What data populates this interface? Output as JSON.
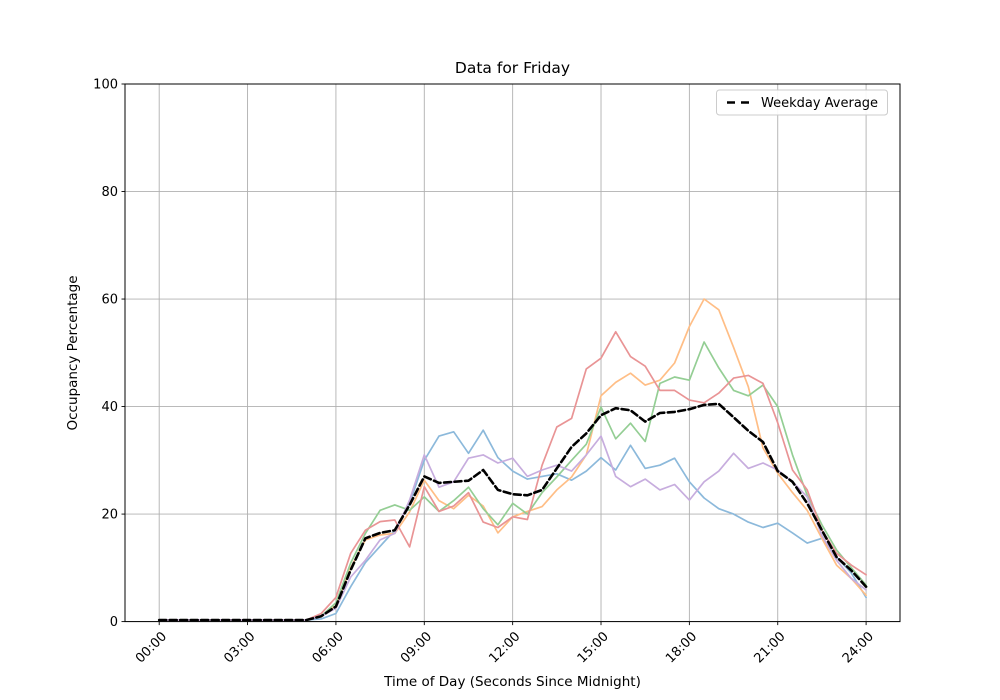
{
  "chart_data": {
    "type": "line",
    "title": "Data for Friday",
    "xlabel": "Time of Day (Seconds Since Midnight)",
    "ylabel": "Occupancy Percentage",
    "ylim": [
      0,
      100
    ],
    "yticks": [
      0,
      20,
      40,
      60,
      80,
      100
    ],
    "xtick_hours": [
      0,
      3,
      6,
      9,
      12,
      15,
      18,
      21,
      24
    ],
    "xtick_labels": [
      "00:00",
      "03:00",
      "06:00",
      "09:00",
      "12:00",
      "15:00",
      "18:00",
      "21:00",
      "24:00"
    ],
    "grid": true,
    "grid_color": "#b0b0b0",
    "legend": {
      "position": "upper right",
      "entries": [
        {
          "label": "Weekday Average",
          "color": "#000000",
          "style": "dashed"
        }
      ]
    },
    "x_hours": [
      0,
      0.5,
      1,
      1.5,
      2,
      2.5,
      3,
      3.5,
      4,
      4.5,
      5,
      5.5,
      6,
      6.5,
      7,
      7.5,
      8,
      8.5,
      9,
      9.5,
      10,
      10.5,
      11,
      11.5,
      12,
      12.5,
      13,
      13.5,
      14,
      14.5,
      15,
      15.5,
      16,
      16.5,
      17,
      17.5,
      18,
      18.5,
      19,
      19.5,
      20,
      20.5,
      21,
      21.5,
      22,
      22.5,
      23,
      23.5,
      24
    ],
    "series": [
      {
        "id": "friday-line-blue",
        "color": "#8CB9DB",
        "width": 1.7,
        "dash": null,
        "values": [
          0.3,
          0.3,
          0.3,
          0.3,
          0.3,
          0.3,
          0.3,
          0.3,
          0.3,
          0.3,
          0.3,
          0.5,
          1.5,
          6.5,
          11,
          14,
          17,
          22,
          30,
          34.5,
          35.3,
          31.3,
          35.6,
          30.5,
          28,
          26.5,
          27,
          27.5,
          26.3,
          28,
          30.5,
          28.2,
          32.8,
          28.5,
          29.1,
          30.4,
          26,
          23,
          21,
          20,
          18.5,
          17.5,
          18.3,
          16.5,
          14.6,
          15.5,
          12,
          9,
          4.5
        ]
      },
      {
        "id": "friday-line-orange",
        "color": "#FFBE86",
        "width": 1.7,
        "dash": null,
        "values": [
          0.3,
          0.3,
          0.3,
          0.3,
          0.3,
          0.3,
          0.3,
          0.3,
          0.3,
          0.3,
          0.3,
          1,
          3,
          10,
          15.2,
          16.1,
          16.4,
          20.4,
          26.3,
          22.5,
          21,
          23.5,
          21.5,
          16.5,
          19.5,
          20.5,
          21.4,
          24.5,
          26.9,
          31,
          42,
          44.5,
          46.2,
          44,
          44.9,
          48.1,
          54.9,
          60,
          58,
          51,
          43.7,
          32.3,
          27.6,
          24,
          20.7,
          15.5,
          10.5,
          8,
          4.9
        ]
      },
      {
        "id": "friday-line-green",
        "color": "#94CE94",
        "width": 1.7,
        "dash": null,
        "values": [
          0.3,
          0.3,
          0.3,
          0.3,
          0.3,
          0.3,
          0.3,
          0.3,
          0.3,
          0.3,
          0.3,
          1,
          3.5,
          10.9,
          16.4,
          20.7,
          21.7,
          20.7,
          23.2,
          20.5,
          22.5,
          25,
          21,
          18,
          22,
          20,
          24,
          26.9,
          30,
          33,
          39.9,
          34,
          36.9,
          33.5,
          44.3,
          45.5,
          44.9,
          52,
          47.2,
          43,
          42,
          44,
          40,
          31,
          23.5,
          18,
          13.3,
          10,
          6.8
        ]
      },
      {
        "id": "friday-line-red",
        "color": "#E99495",
        "width": 1.7,
        "dash": null,
        "values": [
          0.3,
          0.3,
          0.3,
          0.3,
          0.3,
          0.3,
          0.3,
          0.3,
          0.3,
          0.3,
          0.3,
          1.5,
          4.5,
          12.7,
          17,
          18.6,
          18.9,
          13.9,
          25.1,
          20.5,
          21.5,
          24,
          18.5,
          17.5,
          19.5,
          19,
          29.1,
          36.2,
          37.8,
          47,
          49,
          53.9,
          49.3,
          47.5,
          43,
          43,
          41.2,
          40.7,
          42.5,
          45.3,
          45.8,
          44.3,
          37,
          28.2,
          24.5,
          17,
          12.7,
          10.5,
          8.7
        ]
      },
      {
        "id": "friday-line-purple",
        "color": "#C7ADDE",
        "width": 1.7,
        "dash": null,
        "values": [
          0.3,
          0.3,
          0.3,
          0.3,
          0.3,
          0.3,
          0.3,
          0.3,
          0.3,
          0.3,
          0.3,
          1,
          2.5,
          8.3,
          11.4,
          15.2,
          16.4,
          22.6,
          31,
          25,
          26,
          30.4,
          31,
          29.5,
          30.4,
          27,
          28.2,
          29.1,
          28,
          31,
          34.5,
          27,
          25.1,
          26.5,
          24.5,
          25.5,
          22.6,
          26,
          28,
          31.3,
          28.5,
          29.5,
          28.2,
          26,
          23.2,
          16,
          11.4,
          8,
          5.9
        ]
      },
      {
        "id": "weekday-average",
        "label": "Weekday Average",
        "color": "#000000",
        "width": 2.6,
        "dash": "7 3.5",
        "values": [
          0.3,
          0.3,
          0.3,
          0.3,
          0.3,
          0.3,
          0.3,
          0.3,
          0.3,
          0.3,
          0.3,
          1,
          2.8,
          9.6,
          15.5,
          16.5,
          17,
          21.7,
          27,
          25.8,
          26,
          26.2,
          28.2,
          24.5,
          23.7,
          23.5,
          24.5,
          28.5,
          32.5,
          35,
          38.4,
          39.7,
          39.3,
          37.2,
          38.8,
          39,
          39.5,
          40.3,
          40.5,
          38,
          35.5,
          33.4,
          28,
          26,
          22,
          17,
          12,
          9.5,
          6.5
        ]
      }
    ]
  }
}
